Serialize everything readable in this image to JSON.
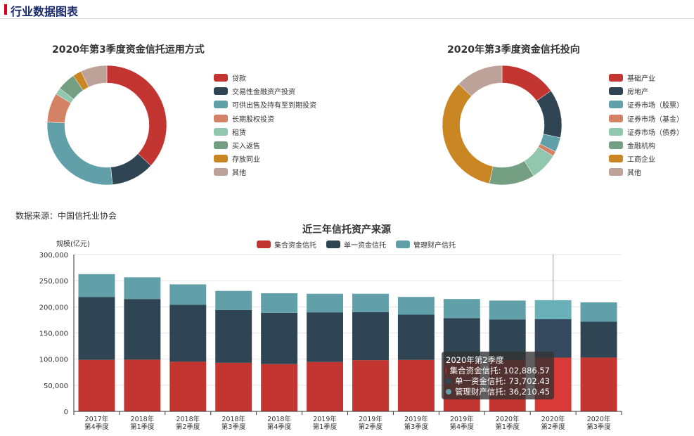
{
  "header": {
    "title": "行业数据图表"
  },
  "source_text": "数据来源：中国信托业协会",
  "colors": [
    "#c23531",
    "#2f4554",
    "#61a0a8",
    "#d48265",
    "#91c7ae",
    "#749f83",
    "#ca8622",
    "#bda29a"
  ],
  "chart_data": [
    {
      "type": "pie",
      "title": "2020年第3季度资金信托运用方式",
      "labels": [
        "贷款",
        "交易性金融资产投资",
        "可供出售及持有至到期投资",
        "长期股权投资",
        "租赁",
        "买入返售",
        "存放同业",
        "其他"
      ],
      "values": [
        37.2,
        11.8,
        27.6,
        8.0,
        1.8,
        5.0,
        2.4,
        7.2
      ],
      "legend_position": "right"
    },
    {
      "type": "pie",
      "title": "2020年第3季度资金信托投向",
      "labels": [
        "基础产业",
        "房地产",
        "证券市场（股票）",
        "证券市场（基金）",
        "证券市场（债券）",
        "金融机构",
        "工商企业",
        "其他"
      ],
      "values": [
        15.1,
        13.0,
        3.9,
        1.3,
        7.4,
        12.2,
        33.3,
        12.8
      ],
      "legend_position": "right"
    },
    {
      "type": "bar",
      "stacked": true,
      "title": "近三年信托资产来源",
      "ylabel": "规模(亿元)",
      "ylim": [
        0,
        300000
      ],
      "yticks": [
        "0",
        "50,000",
        "100,000",
        "150,000",
        "200,000",
        "250,000",
        "300,000"
      ],
      "categories": [
        [
          "2017年",
          "第4季度"
        ],
        [
          "2018年",
          "第1季度"
        ],
        [
          "2018年",
          "第2季度"
        ],
        [
          "2018年",
          "第3季度"
        ],
        [
          "2018年",
          "第4季度"
        ],
        [
          "2019年",
          "第1季度"
        ],
        [
          "2019年",
          "第2季度"
        ],
        [
          "2019年",
          "第3季度"
        ],
        [
          "2019年",
          "第4季度"
        ],
        [
          "2020年",
          "第1季度"
        ],
        [
          "2020年",
          "第2季度"
        ],
        [
          "2020年",
          "第3季度"
        ]
      ],
      "series": [
        {
          "name": "集合资金信托",
          "values": [
            98600,
            99000,
            95000,
            93000,
            90500,
            94500,
            98000,
            98500,
            97000,
            98500,
            102886.57,
            103000
          ]
        },
        {
          "name": "单一资金信托",
          "values": [
            120000,
            116000,
            109000,
            101000,
            98000,
            95000,
            92000,
            86500,
            81500,
            77500,
            73702.43,
            68500
          ]
        },
        {
          "name": "管理财产信托",
          "values": [
            44000,
            41500,
            39000,
            36500,
            37500,
            35500,
            35000,
            34000,
            36500,
            36000,
            36210.45,
            37000
          ]
        }
      ],
      "legend_position": "top-center",
      "highlight_index": 10,
      "tooltip": {
        "title": "2020年第2季度",
        "rows": [
          "集合资金信托: 102,886.57",
          "单一资金信托: 73,702.43",
          "管理财产信托: 36,210.45"
        ]
      }
    }
  ]
}
